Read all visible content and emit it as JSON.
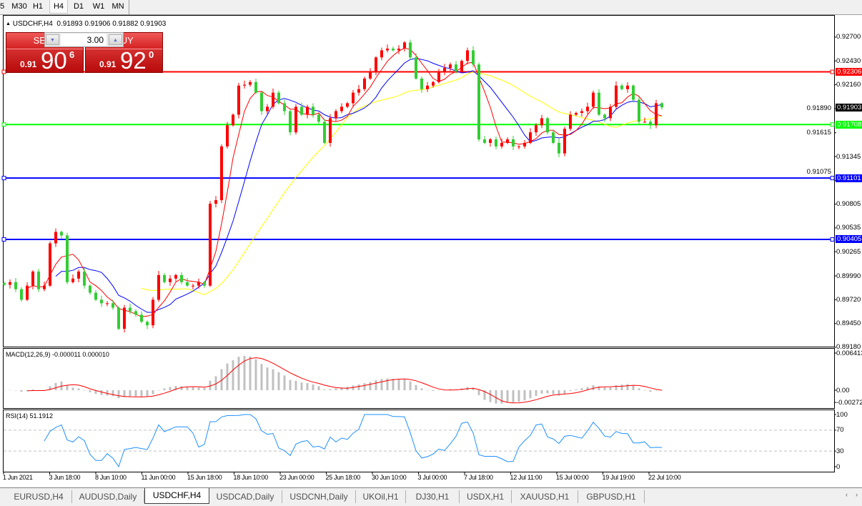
{
  "toolbar": {
    "timeframes": [
      {
        "label": "5",
        "active": false
      },
      {
        "label": "M30",
        "active": false
      },
      {
        "label": "H1",
        "active": false
      },
      {
        "label": "H4",
        "active": true
      },
      {
        "label": "D1",
        "active": false
      },
      {
        "label": "W1",
        "active": false
      },
      {
        "label": "MN",
        "active": false
      }
    ]
  },
  "chart": {
    "symbol_line": "USDCHF,H4  0.91893 0.91906 0.91882 0.91903",
    "collapse_icon": "triangle-up-icon"
  },
  "trade_panel": {
    "sell_label": "SELL",
    "buy_label": "BUY",
    "lot_value": "3.00",
    "sell_price": {
      "prefix": "0.91",
      "big": "90",
      "sup": "6"
    },
    "buy_price": {
      "prefix": "0.91",
      "big": "92",
      "sup": "0"
    },
    "lot_down_icon": "triangle-down-icon",
    "lot_up_icon": "triangle-up-icon"
  },
  "indicators": {
    "macd_label": "MACD(12,26,9) -0.000011 0.000010",
    "rsi_label": "RSI(14) 51.1912"
  },
  "chart_data": {
    "type": "candlestick",
    "symbol": "USDCHF",
    "timeframe": "H4",
    "ylim": [
      0.89188,
      0.92943
    ],
    "price_ticks": [
      "0.92700",
      "0.92430",
      "0.92160",
      "0.91890",
      "0.91615",
      "0.91345",
      "0.91075",
      "0.90805",
      "0.90535",
      "0.90265",
      "0.89990",
      "0.89720",
      "0.89450",
      "0.89180"
    ],
    "date_ticks": [
      "1 Jun 2021",
      "3 Jun 18:00",
      "8 Jun 10:00",
      "11 Jun 00:00",
      "15 Jun 18:00",
      "18 Jun 10:00",
      "23 Jun 00:00",
      "25 Jun 18:00",
      "30 Jun 10:00",
      "3 Jul 00:00",
      "7 Jul 18:00",
      "12 Jul 11:00",
      "15 Jul 00:00",
      "19 Jul 19:00",
      "22 Jul 10:00"
    ],
    "closes": [
      0.8989,
      0.8992,
      0.8984,
      0.8972,
      0.8988,
      0.9004,
      0.8984,
      0.8988,
      0.9036,
      0.9049,
      0.9045,
      0.8992,
      0.8996,
      0.9004,
      0.8988,
      0.898,
      0.8972,
      0.8968,
      0.8968,
      0.8963,
      0.8939,
      0.8963,
      0.8959,
      0.8955,
      0.8947,
      0.8943,
      0.8972,
      0.9,
      0.8992,
      0.8996,
      0.9,
      0.8992,
      0.8988,
      0.8988,
      0.8992,
      0.8988,
      0.9081,
      0.9085,
      0.9146,
      0.917,
      0.9182,
      0.9215,
      0.9216,
      0.9219,
      0.9207,
      0.9186,
      0.9191,
      0.9207,
      0.9195,
      0.9186,
      0.9162,
      0.9191,
      0.9182,
      0.9191,
      0.9182,
      0.9174,
      0.915,
      0.9178,
      0.9186,
      0.9191,
      0.9195,
      0.9207,
      0.9211,
      0.9223,
      0.9231,
      0.9247,
      0.9255,
      0.9257,
      0.9255,
      0.9257,
      0.9264,
      0.9247,
      0.9223,
      0.9211,
      0.9215,
      0.9219,
      0.9231,
      0.9235,
      0.9239,
      0.9231,
      0.9243,
      0.9255,
      0.9239,
      0.9154,
      0.915,
      0.9154,
      0.9146,
      0.915,
      0.9154,
      0.9146,
      0.9146,
      0.915,
      0.9162,
      0.917,
      0.9178,
      0.9162,
      0.915,
      0.9138,
      0.9166,
      0.9182,
      0.9184,
      0.9186,
      0.9191,
      0.9207,
      0.9182,
      0.9178,
      0.9191,
      0.9215,
      0.9211,
      0.9215,
      0.9199,
      0.9174,
      0.9174,
      0.917,
      0.9195,
      0.91903
    ],
    "up_color": "#ff0000",
    "down_color": "#32cd32",
    "ma_colors": [
      "#ff0000",
      "#0000ff",
      "#ffff00"
    ],
    "horizontal_lines": [
      {
        "price": "0.92306",
        "color": "#ff0000"
      },
      {
        "price": "0.91708",
        "color": "#00ff00"
      },
      {
        "price": "0.91101",
        "color": "#0000ff"
      },
      {
        "price": "0.90405",
        "color": "#0000ff"
      }
    ],
    "current_price": {
      "price": "0.91903",
      "color": "#000000"
    },
    "macd": {
      "ticks": [
        "0.006413",
        "0.00",
        "-0.00272"
      ],
      "ylim": [
        -0.00272,
        0.006413
      ],
      "histogram_color": "#c0c0c0",
      "signal_color": "#ff0000"
    },
    "rsi": {
      "ticks": [
        "100",
        "70",
        "30",
        "0"
      ],
      "levels": [
        70,
        30
      ],
      "color": "#1e90ff"
    }
  },
  "tabs": [
    {
      "label": "EURUSD,H4",
      "active": false
    },
    {
      "label": "AUDUSD,Daily",
      "active": false
    },
    {
      "label": "USDCHF,H4",
      "active": true
    },
    {
      "label": "USDCAD,Daily",
      "active": false
    },
    {
      "label": "USDCNH,Daily",
      "active": false
    },
    {
      "label": "UKOil,H1",
      "active": false
    },
    {
      "label": "DJ30,H1",
      "active": false
    },
    {
      "label": "USDX,H1",
      "active": false
    },
    {
      "label": "XAUUSD,H1",
      "active": false
    },
    {
      "label": "GBPUSD,H1",
      "active": false
    }
  ],
  "tab_scroll": {
    "left_icon": "chevron-left-icon",
    "right_icon": "chevron-right-icon",
    "left": "‹",
    "right": "›"
  }
}
